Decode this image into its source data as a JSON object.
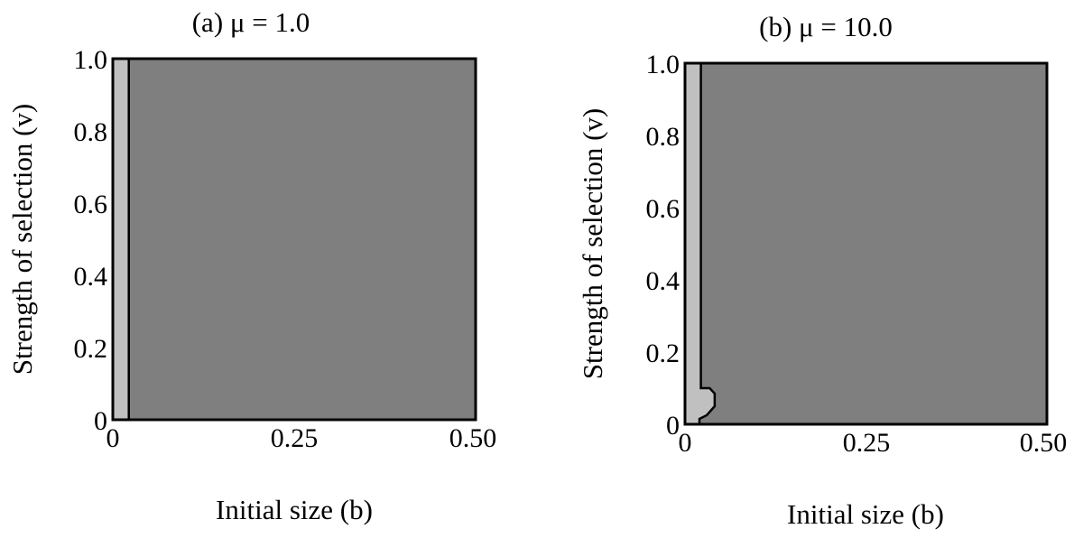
{
  "chart_data": [
    {
      "type": "heatmap",
      "title": "(a) μ = 1.0",
      "xlabel": "Initial size (b)",
      "ylabel": "Strength of selection (v)",
      "xlim": [
        0,
        0.5
      ],
      "ylim": [
        0,
        1.0
      ],
      "xticks": [
        "0",
        "0.25",
        "0.50"
      ],
      "yticks": [
        "0",
        "0.2",
        "0.4",
        "0.6",
        "0.8",
        "1.0"
      ],
      "xtick_values": [
        0,
        0.25,
        0.5
      ],
      "ytick_values": [
        0,
        0.2,
        0.4,
        0.6,
        0.8,
        1.0
      ],
      "grid": false,
      "colors": {
        "background_region": "#7f7f7f",
        "light_region": "#c0c0c0",
        "boundary": "#000000"
      },
      "light_region": [
        {
          "b": 0,
          "v": 0
        },
        {
          "b": 0.022,
          "v": 0
        },
        {
          "b": 0.022,
          "v": 1.0
        },
        {
          "b": 0,
          "v": 1.0
        }
      ],
      "boundary": [
        {
          "b": 0.022,
          "v": 0
        },
        {
          "b": 0.022,
          "v": 1.0
        }
      ]
    },
    {
      "type": "heatmap",
      "title": "(b) μ = 10.0",
      "xlabel": "Initial size (b)",
      "ylabel": "Strength of selection (v)",
      "xlim": [
        0,
        0.5
      ],
      "ylim": [
        0,
        1.0
      ],
      "xticks": [
        "0",
        "0.25",
        "0.50"
      ],
      "yticks": [
        "0",
        "0.2",
        "0.4",
        "0.6",
        "0.8",
        "1.0"
      ],
      "xtick_values": [
        0,
        0.25,
        0.5
      ],
      "ytick_values": [
        0,
        0.2,
        0.4,
        0.6,
        0.8,
        1.0
      ],
      "grid": false,
      "colors": {
        "background_region": "#7f7f7f",
        "light_region": "#c0c0c0",
        "boundary": "#000000"
      },
      "light_region": [
        {
          "b": 0,
          "v": 0
        },
        {
          "b": 0.02,
          "v": 0
        },
        {
          "b": 0.02,
          "v": 0.015
        },
        {
          "b": 0.03,
          "v": 0.025
        },
        {
          "b": 0.041,
          "v": 0.05
        },
        {
          "b": 0.041,
          "v": 0.085
        },
        {
          "b": 0.034,
          "v": 0.1
        },
        {
          "b": 0.022,
          "v": 0.1
        },
        {
          "b": 0.022,
          "v": 1.0
        },
        {
          "b": 0,
          "v": 1.0
        }
      ],
      "boundary": [
        {
          "b": 0.02,
          "v": 0
        },
        {
          "b": 0.02,
          "v": 0.015
        },
        {
          "b": 0.03,
          "v": 0.025
        },
        {
          "b": 0.041,
          "v": 0.05
        },
        {
          "b": 0.041,
          "v": 0.085
        },
        {
          "b": 0.034,
          "v": 0.1
        },
        {
          "b": 0.022,
          "v": 0.1
        },
        {
          "b": 0.022,
          "v": 1.0
        }
      ]
    }
  ]
}
